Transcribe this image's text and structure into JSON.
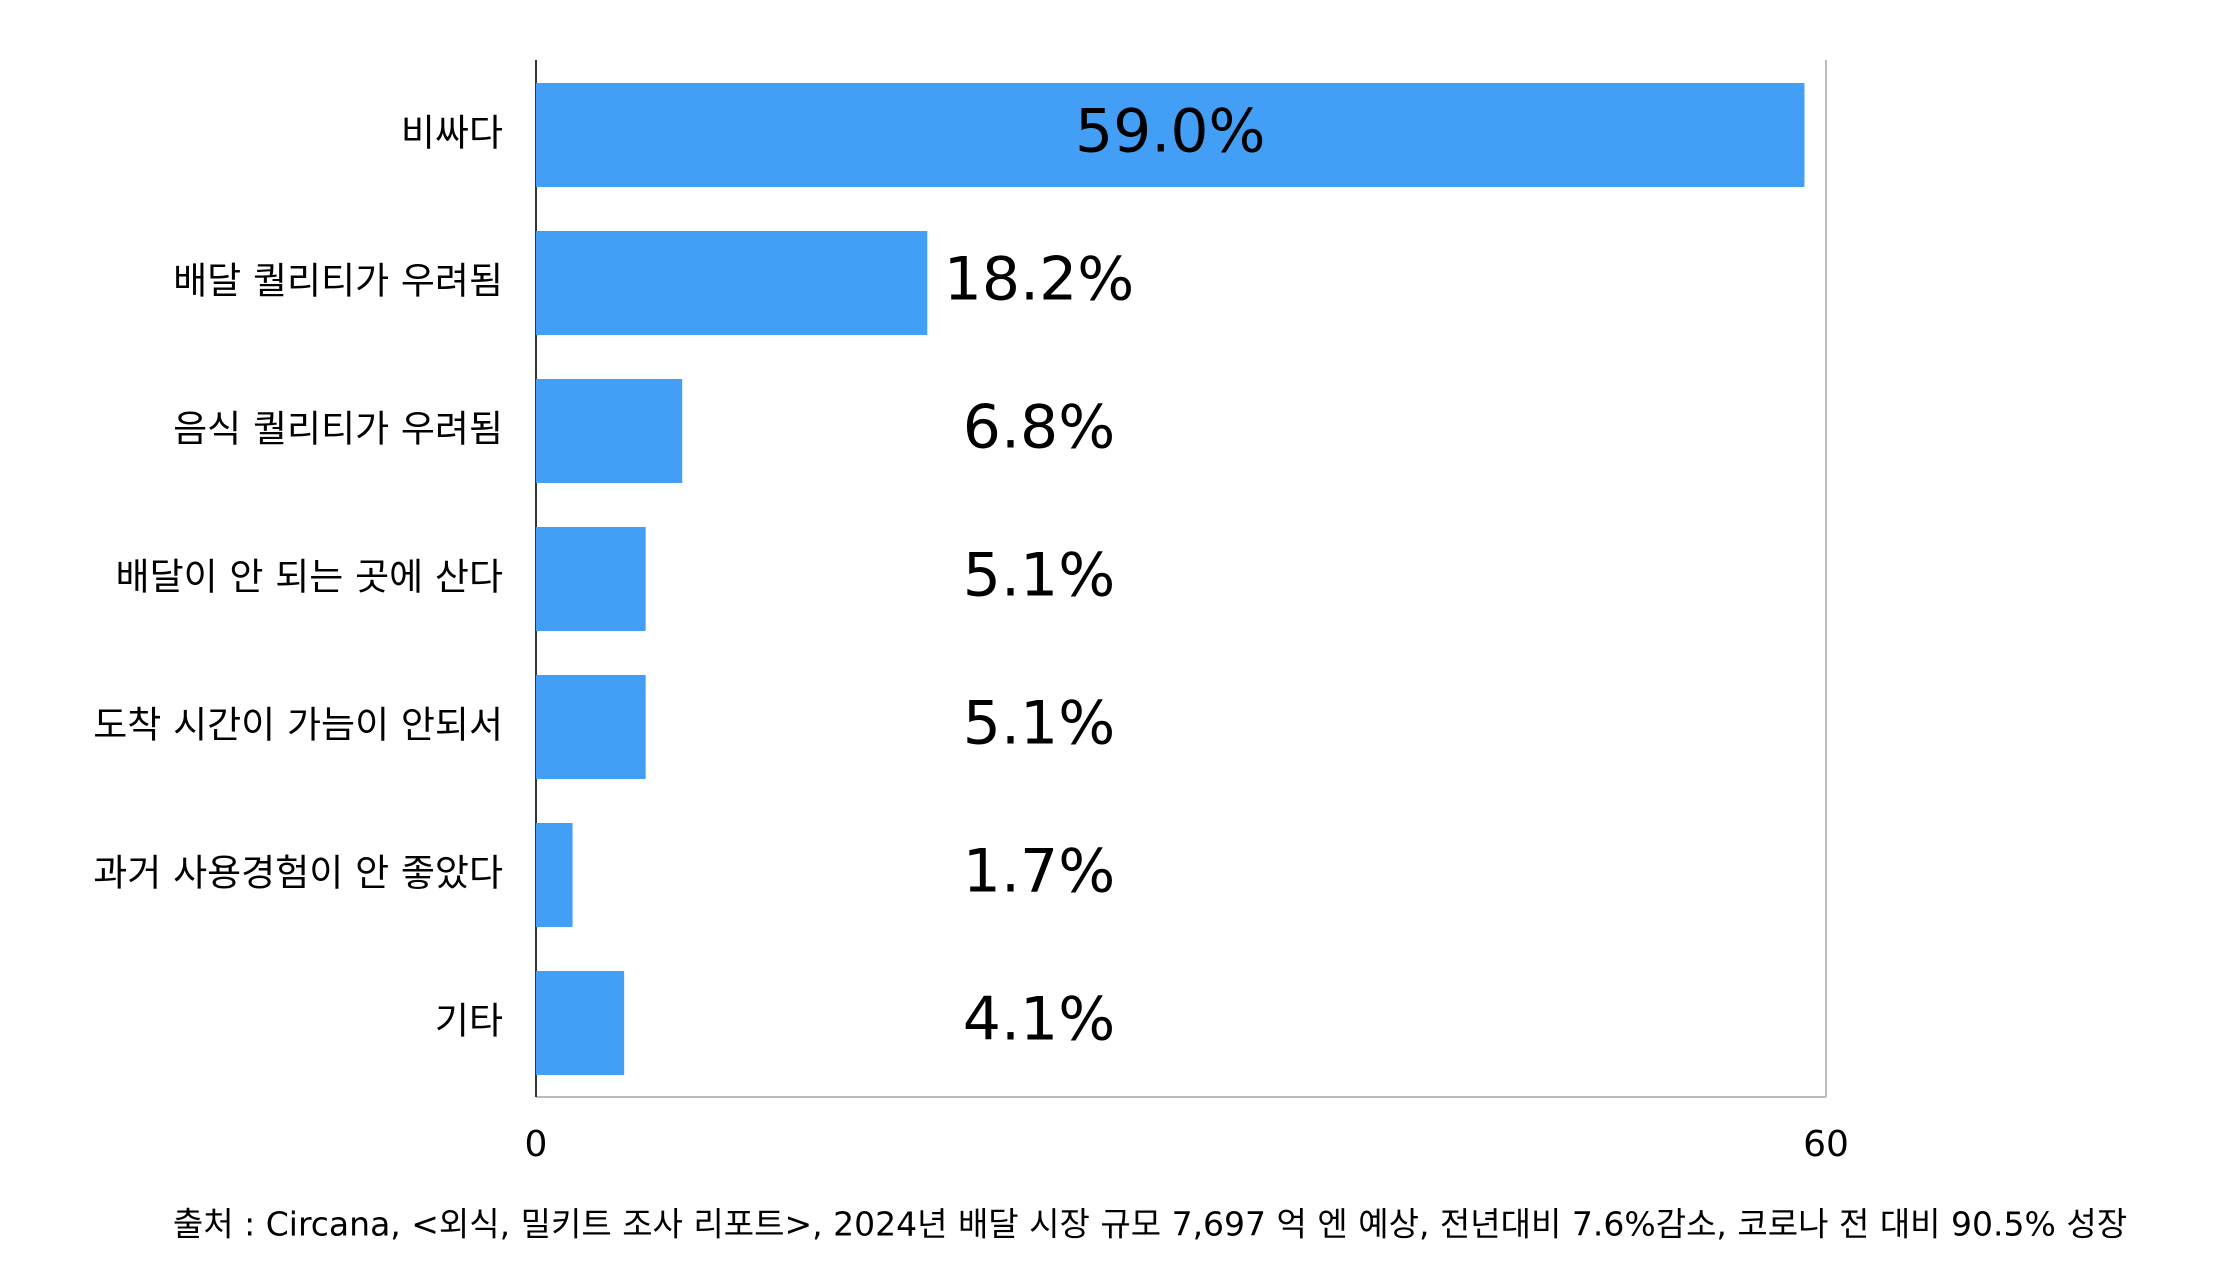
{
  "chart_data": {
    "type": "hbar",
    "categories": [
      "비싸다",
      "배달 퀄리티가 우려됨",
      "음식 퀄리티가 우려됨",
      "배달이 안 되는 곳에 산다",
      "도착 시간이 가늠이 안되서",
      "과거 사용경험이 안 좋았다",
      "기타"
    ],
    "values": [
      59.0,
      18.2,
      6.8,
      5.1,
      5.1,
      1.7,
      4.1
    ],
    "value_labels": [
      "59.0%",
      "18.2%",
      "6.8%",
      "5.1%",
      "5.1%",
      "1.7%",
      "4.1%"
    ],
    "color": "#429ff5",
    "xlim": [
      0,
      60
    ],
    "xticks": [
      0,
      60
    ],
    "source": "출처 : Circana, <외식, 밀키트 조사 리포트>, 2024년 배달 시장 규모 7,697 억 엔 예상, 전년대비 7.6%감소, 코로나 전 대비 90.5% 성장"
  }
}
